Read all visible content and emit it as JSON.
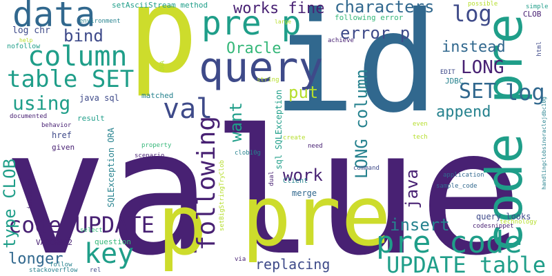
{
  "palette": {
    "dark-purple": "#482173",
    "indigo": "#3e4a89",
    "steel-blue": "#31688e",
    "teal": "#26828e",
    "green-teal": "#1f9e89",
    "mint": "#35b779",
    "light-green": "#6ece58",
    "yellow-green": "#b5de2b",
    "lime": "#cddc2c"
  },
  "words": [
    {
      "text": "value",
      "color": "dark-purple"
    },
    {
      "text": "id",
      "color": "steel-blue"
    },
    {
      "text": "p",
      "color": "lime"
    },
    {
      "text": "pre",
      "color": "lime"
    },
    {
      "text": "p",
      "color": "lime"
    },
    {
      "text": "code pre",
      "color": "green-teal"
    },
    {
      "text": "pre code",
      "color": "green-teal"
    },
    {
      "text": "query",
      "color": "indigo"
    },
    {
      "text": "pre p",
      "color": "green-teal"
    },
    {
      "text": "data",
      "color": "steel-blue"
    },
    {
      "text": "column",
      "color": "green-teal"
    },
    {
      "text": "table SET",
      "color": "green-teal"
    },
    {
      "text": "val",
      "color": "indigo"
    },
    {
      "text": "following",
      "color": "dark-purple"
    },
    {
      "text": "code UPDATE",
      "color": "dark-purple"
    },
    {
      "text": "key",
      "color": "green-teal"
    },
    {
      "text": "UPDATE table",
      "color": "green-teal"
    },
    {
      "text": "log",
      "color": "indigo"
    },
    {
      "text": "log",
      "color": "steel-blue"
    },
    {
      "text": "LONG",
      "color": "dark-purple"
    },
    {
      "text": "SET",
      "color": "steel-blue"
    },
    {
      "text": "characters",
      "color": "steel-blue"
    },
    {
      "text": "works fine",
      "color": "dark-purple"
    },
    {
      "text": "error p",
      "color": "indigo"
    },
    {
      "text": "instead",
      "color": "steel-blue"
    },
    {
      "text": "Oracle",
      "color": "mint"
    },
    {
      "text": "bind",
      "color": "indigo"
    },
    {
      "text": "using",
      "color": "green-teal"
    },
    {
      "text": "put",
      "color": "yellow-green"
    },
    {
      "text": "append",
      "color": "teal"
    },
    {
      "text": "want",
      "color": "green-teal"
    },
    {
      "text": "work",
      "color": "dark-purple"
    },
    {
      "text": "insert",
      "color": "teal"
    },
    {
      "text": "LONG column",
      "color": "teal"
    },
    {
      "text": "java",
      "color": "dark-purple"
    },
    {
      "text": "type CLOB",
      "color": "green-teal"
    },
    {
      "text": "longer",
      "color": "steel-blue"
    },
    {
      "text": "replacing",
      "color": "indigo"
    },
    {
      "text": "query looks",
      "color": "indigo"
    },
    {
      "text": "log chr",
      "color": "indigo"
    },
    {
      "text": "nofollow",
      "color": "green-teal"
    },
    {
      "text": "setAsciiStream method",
      "color": "green-teal"
    },
    {
      "text": "environment",
      "color": "teal"
    },
    {
      "text": "following error",
      "color": "mint"
    },
    {
      "text": "possible",
      "color": "yellow-green"
    },
    {
      "text": "simple",
      "color": "green-teal"
    },
    {
      "text": "CLOB",
      "color": "dark-purple"
    },
    {
      "text": "large",
      "color": "yellow-green"
    },
    {
      "text": "help",
      "color": "yellow-green"
    },
    {
      "text": "achieve",
      "color": "dark-purple"
    },
    {
      "text": "html",
      "color": "indigo"
    },
    {
      "text": "ORA",
      "color": "yellow-green"
    },
    {
      "text": "string",
      "color": "yellow-green"
    },
    {
      "text": "EDIT",
      "color": "indigo"
    },
    {
      "text": "JDBC",
      "color": "teal"
    },
    {
      "text": "java sql",
      "color": "indigo"
    },
    {
      "text": "matched",
      "color": "teal"
    },
    {
      "text": "result",
      "color": "green-teal"
    },
    {
      "text": "documented",
      "color": "dark-purple"
    },
    {
      "text": "behavior",
      "color": "dark-purple"
    },
    {
      "text": "href",
      "color": "indigo"
    },
    {
      "text": "given",
      "color": "dark-purple"
    },
    {
      "text": "SQLException ORA",
      "color": "teal"
    },
    {
      "text": "sql SQLException",
      "color": "green-teal"
    },
    {
      "text": "create",
      "color": "yellow-green"
    },
    {
      "text": "need",
      "color": "dark-purple"
    },
    {
      "text": "even",
      "color": "yellow-green"
    },
    {
      "text": "tech",
      "color": "yellow-green"
    },
    {
      "text": "property",
      "color": "mint"
    },
    {
      "text": "scenario",
      "color": "dark-purple"
    },
    {
      "text": "clob10g",
      "color": "teal"
    },
    {
      "text": "setBigStringTryClob",
      "color": "yellow-green"
    },
    {
      "text": "invoking",
      "color": "dark-purple"
    },
    {
      "text": "command",
      "color": "indigo"
    },
    {
      "text": "dual",
      "color": "dark-purple"
    },
    {
      "text": "Client",
      "color": "teal"
    },
    {
      "text": "merge",
      "color": "steel-blue"
    },
    {
      "text": "application",
      "color": "steel-blue"
    },
    {
      "text": "sample_code",
      "color": "steel-blue"
    },
    {
      "text": "handlingclobsinoraclejdbc10g",
      "color": "teal"
    },
    {
      "text": "technology",
      "color": "yellow-green"
    },
    {
      "text": "codesnippet",
      "color": "dark-purple"
    },
    {
      "text": "select",
      "color": "mint"
    },
    {
      "text": "VARCHAR2",
      "color": "dark-purple"
    },
    {
      "text": "question",
      "color": "mint"
    },
    {
      "text": "via",
      "color": "dark-purple"
    },
    {
      "text": "follow",
      "color": "teal"
    },
    {
      "text": "rel",
      "color": "indigo"
    },
    {
      "text": "stackoverflow",
      "color": "teal"
    }
  ]
}
